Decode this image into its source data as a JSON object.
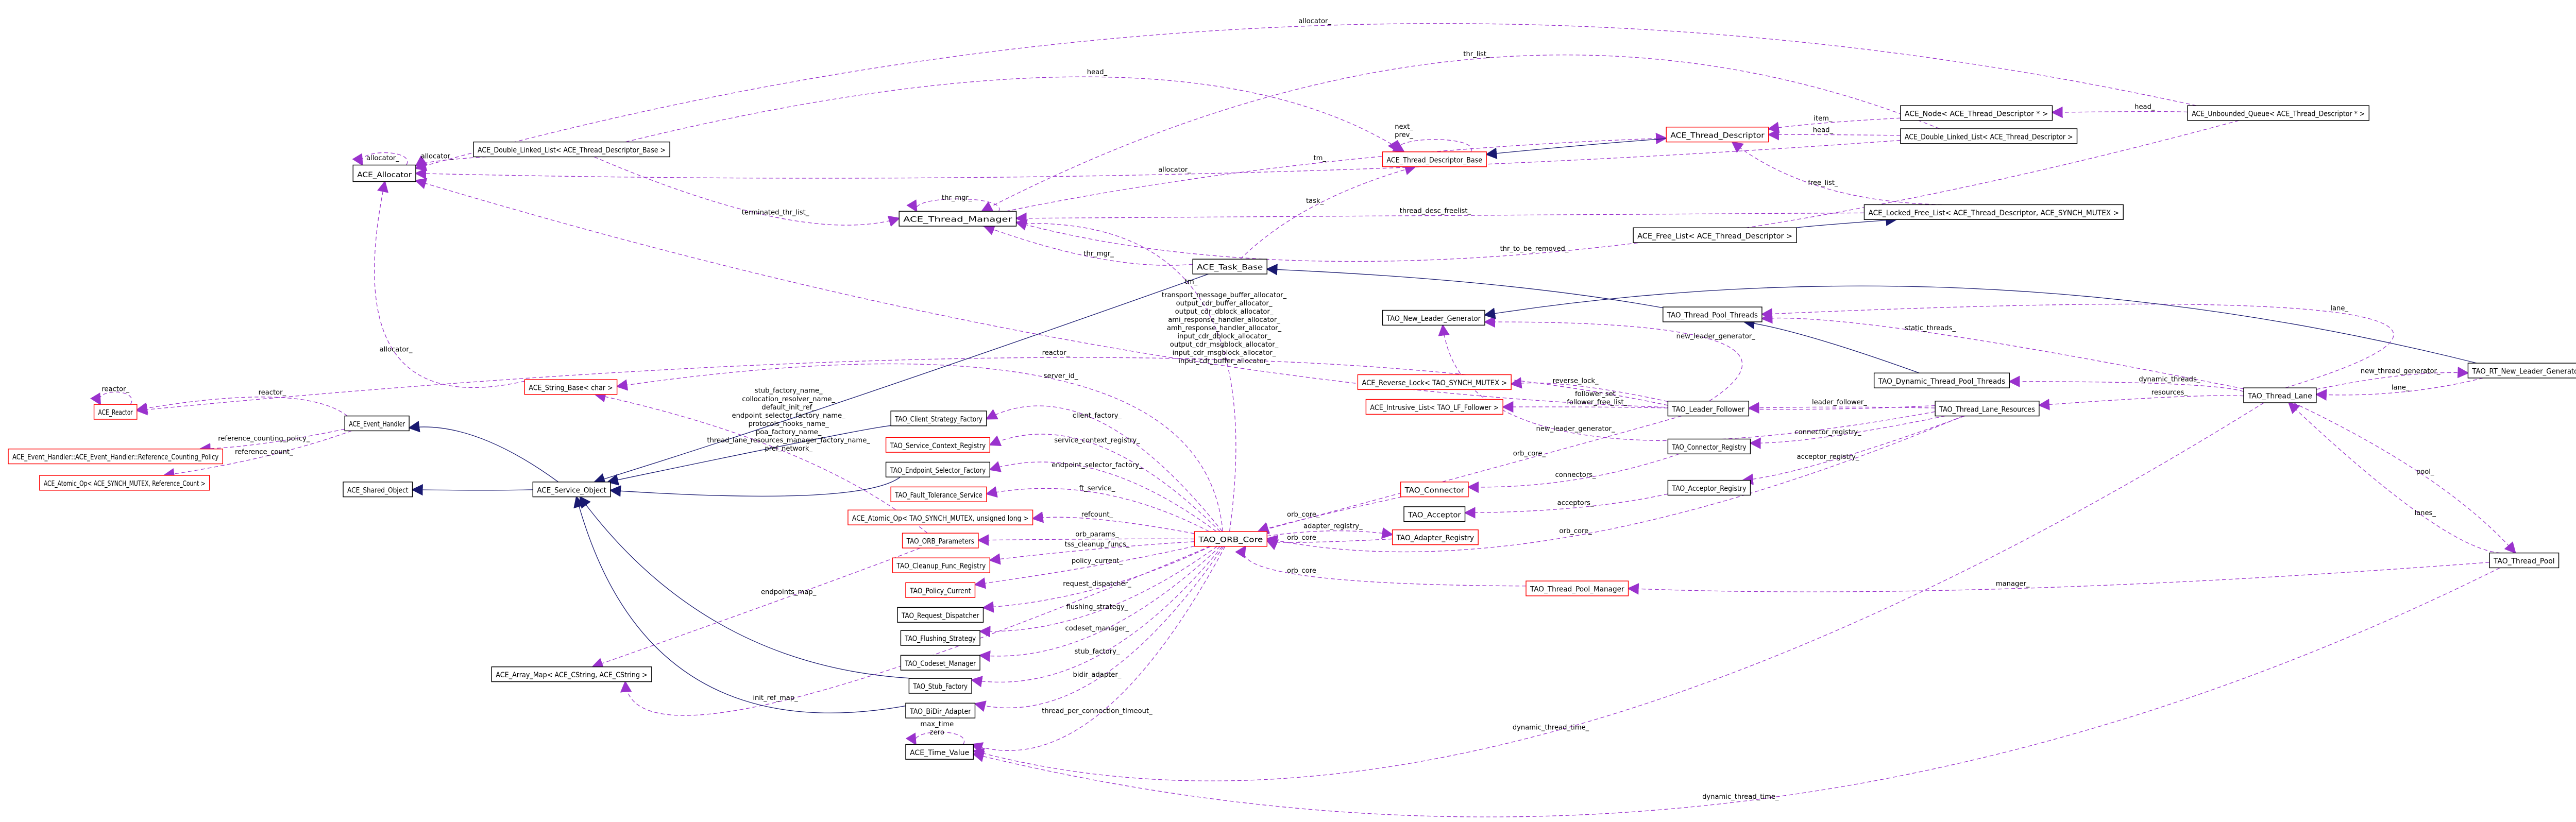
{
  "colors": {
    "usage_edge": "#9a32cd",
    "inheritance_edge": "#191970",
    "undocumented_border": "#ff0000",
    "normal_border": "#000000",
    "highlight_fill": "#bfbfbf"
  },
  "nodes": [
    {
      "id": "alloc",
      "label": "ACE_Allocator",
      "border": "normal"
    },
    {
      "id": "dll_base",
      "label": "ACE_Double_Linked_List< ACE_Thread_Descriptor_Base >",
      "border": "normal"
    },
    {
      "id": "tm",
      "label": "ACE_Thread_Manager",
      "border": "normal"
    },
    {
      "id": "tdb",
      "label": "ACE_Thread_Descriptor_Base",
      "border": "red"
    },
    {
      "id": "td",
      "label": "ACE_Thread_Descriptor",
      "border": "red"
    },
    {
      "id": "node",
      "label": "ACE_Node< ACE_Thread_Descriptor * >",
      "border": "normal"
    },
    {
      "id": "dll_td",
      "label": "ACE_Double_Linked_List< ACE_Thread_Descriptor >",
      "border": "normal"
    },
    {
      "id": "uq",
      "label": "ACE_Unbounded_Queue< ACE_Thread_Descriptor * >",
      "border": "normal"
    },
    {
      "id": "lfl",
      "label": "ACE_Locked_Free_List< ACE_Thread_Descriptor, ACE_SYNCH_MUTEX >",
      "border": "normal"
    },
    {
      "id": "fl",
      "label": "ACE_Free_List< ACE_Thread_Descriptor >",
      "border": "normal"
    },
    {
      "id": "task",
      "label": "ACE_Task_Base",
      "border": "normal"
    },
    {
      "id": "tpt",
      "label": "TAO_Thread_Pool_Threads",
      "border": "highlight"
    },
    {
      "id": "nlg",
      "label": "TAO_New_Leader_Generator",
      "border": "normal"
    },
    {
      "id": "dtpt",
      "label": "TAO_Dynamic_Thread_Pool_Threads",
      "border": "normal"
    },
    {
      "id": "lane",
      "label": "TAO_Thread_Lane",
      "border": "normal"
    },
    {
      "id": "rtnlg",
      "label": "TAO_RT_New_Leader_Generator",
      "border": "normal"
    },
    {
      "id": "tlr",
      "label": "TAO_Thread_Lane_Resources",
      "border": "normal"
    },
    {
      "id": "lf",
      "label": "TAO_Leader_Follower",
      "border": "normal"
    },
    {
      "id": "rlock",
      "label": "ACE_Reverse_Lock< TAO_SYNCH_MUTEX >",
      "border": "red"
    },
    {
      "id": "ilist",
      "label": "ACE_Intrusive_List< TAO_LF_Follower >",
      "border": "red"
    },
    {
      "id": "creg",
      "label": "TAO_Connector_Registry",
      "border": "normal"
    },
    {
      "id": "conn",
      "label": "TAO_Connector",
      "border": "red"
    },
    {
      "id": "areg",
      "label": "TAO_Acceptor_Registry",
      "border": "normal"
    },
    {
      "id": "acc",
      "label": "TAO_Acceptor",
      "border": "normal"
    },
    {
      "id": "adreg",
      "label": "TAO_Adapter_Registry",
      "border": "red"
    },
    {
      "id": "orb",
      "label": "TAO_ORB_Core",
      "border": "red"
    },
    {
      "id": "tpm",
      "label": "TAO_Thread_Pool_Manager",
      "border": "red"
    },
    {
      "id": "pool",
      "label": "TAO_Thread_Pool",
      "border": "normal"
    },
    {
      "id": "strbase",
      "label": "ACE_String_Base< char >",
      "border": "red"
    },
    {
      "id": "reactor",
      "label": "ACE_Reactor",
      "border": "red"
    },
    {
      "id": "eh",
      "label": "ACE_Event_Handler",
      "border": "normal"
    },
    {
      "id": "rcp",
      "label": "ACE_Event_Handler::ACE_Event_Handler::Reference_Counting_Policy",
      "border": "red"
    },
    {
      "id": "aorc",
      "label": "ACE_Atomic_Op< ACE_SYNCH_MUTEX, Reference_Count >",
      "border": "red"
    },
    {
      "id": "so",
      "label": "ACE_Shared_Object",
      "border": "normal"
    },
    {
      "id": "svc",
      "label": "ACE_Service_Object",
      "border": "normal"
    },
    {
      "id": "csf",
      "label": "TAO_Client_Strategy_Factory",
      "border": "normal"
    },
    {
      "id": "scr",
      "label": "TAO_Service_Context_Registry",
      "border": "red"
    },
    {
      "id": "esf",
      "label": "TAO_Endpoint_Selector_Factory",
      "border": "normal"
    },
    {
      "id": "fts",
      "label": "TAO_Fault_Tolerance_Service",
      "border": "red"
    },
    {
      "id": "aoul",
      "label": "ACE_Atomic_Op< TAO_SYNCH_MUTEX, unsigned long >",
      "border": "red"
    },
    {
      "id": "params",
      "label": "TAO_ORB_Parameters",
      "border": "red"
    },
    {
      "id": "cfr",
      "label": "TAO_Cleanup_Func_Registry",
      "border": "red"
    },
    {
      "id": "pc",
      "label": "TAO_Policy_Current",
      "border": "red"
    },
    {
      "id": "rd",
      "label": "TAO_Request_Dispatcher",
      "border": "normal"
    },
    {
      "id": "fs",
      "label": "TAO_Flushing_Strategy",
      "border": "normal"
    },
    {
      "id": "cm",
      "label": "TAO_Codeset_Manager",
      "border": "normal"
    },
    {
      "id": "sf",
      "label": "TAO_Stub_Factory",
      "border": "normal"
    },
    {
      "id": "bidir",
      "label": "TAO_BiDir_Adapter",
      "border": "normal"
    },
    {
      "id": "amap",
      "label": "ACE_Array_Map< ACE_CString, ACE_CString >",
      "border": "normal"
    },
    {
      "id": "tv",
      "label": "ACE_Time_Value",
      "border": "normal"
    }
  ],
  "edges": [
    {
      "from": "alloc",
      "to": "alloc",
      "kind": "usage",
      "label": [
        "allocator_"
      ]
    },
    {
      "from": "dll_base",
      "to": "alloc",
      "kind": "usage",
      "label": [
        "allocator_"
      ]
    },
    {
      "from": "dll_td",
      "to": "alloc",
      "kind": "usage",
      "label": [
        "allocator_"
      ]
    },
    {
      "from": "uq",
      "to": "alloc",
      "kind": "usage",
      "label": [
        "allocator_"
      ]
    },
    {
      "from": "strbase",
      "to": "alloc",
      "kind": "usage",
      "label": [
        "allocator_"
      ]
    },
    {
      "from": "dll_base",
      "to": "tdb",
      "kind": "usage",
      "label": [
        "head_"
      ]
    },
    {
      "from": "dll_base",
      "to": "tm",
      "kind": "usage",
      "label": [
        "terminated_thr_list_"
      ]
    },
    {
      "from": "tm",
      "to": "tm",
      "kind": "usage",
      "label": [
        "thr_mgr_"
      ]
    },
    {
      "from": "dll_td",
      "to": "tm",
      "kind": "usage",
      "label": [
        "thr_list_"
      ]
    },
    {
      "from": "tdb",
      "to": "tdb",
      "kind": "usage",
      "label": [
        "next_",
        "prev_"
      ]
    },
    {
      "from": "tm",
      "to": "td",
      "kind": "usage",
      "label": [
        "tm_"
      ]
    },
    {
      "from": "node",
      "to": "td",
      "kind": "usage",
      "label": [
        "item_"
      ]
    },
    {
      "from": "dll_td",
      "to": "td",
      "kind": "usage",
      "label": [
        "head_"
      ]
    },
    {
      "from": "uq",
      "to": "node",
      "kind": "usage",
      "label": [
        "head_"
      ]
    },
    {
      "from": "lfl",
      "to": "td",
      "kind": "usage",
      "label": [
        "free_list_"
      ]
    },
    {
      "from": "lfl",
      "to": "tm",
      "kind": "usage",
      "label": [
        "thread_desc_freelist_"
      ]
    },
    {
      "from": "uq",
      "to": "tm",
      "kind": "usage",
      "label": [
        "thr_to_be_removed_"
      ]
    },
    {
      "from": "task",
      "to": "tm",
      "kind": "usage",
      "label": [
        "thr_mgr_"
      ]
    },
    {
      "from": "task",
      "to": "tdb",
      "kind": "usage",
      "label": [
        "task_"
      ]
    },
    {
      "from": "orb",
      "to": "tm",
      "kind": "usage",
      "label": [
        "tm_"
      ]
    },
    {
      "from": "lane",
      "to": "tpt",
      "kind": "usage",
      "label": [
        "static_threads_"
      ]
    },
    {
      "from": "lane",
      "to": "tpt",
      "kind": "usage",
      "label": [
        "lane_"
      ]
    },
    {
      "from": "lane",
      "to": "dtpt",
      "kind": "usage",
      "label": [
        "dynamic_threads_"
      ]
    },
    {
      "from": "lane",
      "to": "tlr",
      "kind": "usage",
      "label": [
        "resources_"
      ]
    },
    {
      "from": "lane",
      "to": "rtnlg",
      "kind": "usage",
      "label": [
        "new_thread_generator_"
      ]
    },
    {
      "from": "rtnlg",
      "to": "lane",
      "kind": "usage",
      "label": [
        "lane_"
      ]
    },
    {
      "from": "lane",
      "to": "pool",
      "kind": "usage",
      "label": [
        "pool_"
      ]
    },
    {
      "from": "pool",
      "to": "lane",
      "kind": "usage",
      "label": [
        "lanes_"
      ]
    },
    {
      "from": "lf",
      "to": "nlg",
      "kind": "usage",
      "label": [
        "new_leader_generator_"
      ]
    },
    {
      "from": "tlr",
      "to": "nlg",
      "kind": "usage",
      "label": [
        "new_leader_generator_"
      ]
    },
    {
      "from": "lf",
      "to": "rlock",
      "kind": "usage",
      "label": [
        "reverse_lock_"
      ]
    },
    {
      "from": "lf",
      "to": "ilist",
      "kind": "usage",
      "label": [
        "follower_set_",
        "follower_free_list_"
      ]
    },
    {
      "from": "tlr",
      "to": "lf",
      "kind": "usage",
      "label": [
        "leader_follower_"
      ]
    },
    {
      "from": "tlr",
      "to": "creg",
      "kind": "usage",
      "label": [
        "connector_registry_"
      ]
    },
    {
      "from": "tlr",
      "to": "areg",
      "kind": "usage",
      "label": [
        "acceptor_registry_"
      ]
    },
    {
      "from": "creg",
      "to": "conn",
      "kind": "usage",
      "label": [
        "connectors_"
      ]
    },
    {
      "from": "areg",
      "to": "acc",
      "kind": "usage",
      "label": [
        "acceptors_"
      ]
    },
    {
      "from": "lf",
      "to": "orb",
      "kind": "usage",
      "label": [
        "orb_core_"
      ]
    },
    {
      "from": "conn",
      "to": "orb",
      "kind": "usage",
      "label": [
        "orb_core_"
      ]
    },
    {
      "from": "orb",
      "to": "adreg",
      "kind": "usage",
      "label": [
        "adapter_registry_"
      ]
    },
    {
      "from": "adreg",
      "to": "orb",
      "kind": "usage",
      "label": [
        "orb_core_"
      ]
    },
    {
      "from": "tlr",
      "to": "orb",
      "kind": "usage",
      "label": [
        "orb_core_"
      ]
    },
    {
      "from": "tpm",
      "to": "orb",
      "kind": "usage",
      "label": [
        "orb_core_"
      ]
    },
    {
      "from": "pool",
      "to": "tpm",
      "kind": "usage",
      "label": [
        "manager_"
      ]
    },
    {
      "from": "lane",
      "to": "tv",
      "kind": "usage",
      "label": [
        "dynamic_thread_time_"
      ]
    },
    {
      "from": "pool",
      "to": "tv",
      "kind": "usage",
      "label": [
        "dynamic_thread_time_"
      ]
    },
    {
      "from": "tv",
      "to": "tv",
      "kind": "usage",
      "label": [
        "max_time",
        "zero"
      ]
    },
    {
      "from": "orb",
      "to": "tv",
      "kind": "usage",
      "label": [
        "thread_per_connection_timeout_"
      ]
    },
    {
      "from": "orb",
      "to": "amap",
      "kind": "usage",
      "label": [
        "init_ref_map_"
      ]
    },
    {
      "from": "params",
      "to": "amap",
      "kind": "usage",
      "label": [
        "endpoints_map_"
      ]
    },
    {
      "from": "orb",
      "to": "bidir",
      "kind": "usage",
      "label": [
        "bidir_adapter_"
      ]
    },
    {
      "from": "orb",
      "to": "sf",
      "kind": "usage",
      "label": [
        "stub_factory_"
      ]
    },
    {
      "from": "orb",
      "to": "cm",
      "kind": "usage",
      "label": [
        "codeset_manager_"
      ]
    },
    {
      "from": "orb",
      "to": "fs",
      "kind": "usage",
      "label": [
        "flushing_strategy_"
      ]
    },
    {
      "from": "orb",
      "to": "rd",
      "kind": "usage",
      "label": [
        "request_dispatcher_"
      ]
    },
    {
      "from": "orb",
      "to": "pc",
      "kind": "usage",
      "label": [
        "policy_current_"
      ]
    },
    {
      "from": "orb",
      "to": "cfr",
      "kind": "usage",
      "label": [
        "tss_cleanup_funcs_"
      ]
    },
    {
      "from": "orb",
      "to": "params",
      "kind": "usage",
      "label": [
        "orb_params_"
      ]
    },
    {
      "from": "orb",
      "to": "aoul",
      "kind": "usage",
      "label": [
        "refcount_"
      ]
    },
    {
      "from": "orb",
      "to": "fts",
      "kind": "usage",
      "label": [
        "ft_service_"
      ]
    },
    {
      "from": "orb",
      "to": "esf",
      "kind": "usage",
      "label": [
        "endpoint_selector_factory_"
      ]
    },
    {
      "from": "orb",
      "to": "scr",
      "kind": "usage",
      "label": [
        "service_context_registry_"
      ]
    },
    {
      "from": "orb",
      "to": "csf",
      "kind": "usage",
      "label": [
        "client_factory_"
      ]
    },
    {
      "from": "orb",
      "to": "strbase",
      "kind": "usage",
      "label": [
        "server_id_"
      ]
    },
    {
      "from": "reactor",
      "to": "reactor",
      "kind": "usage",
      "label": [
        "reactor_"
      ]
    },
    {
      "from": "eh",
      "to": "reactor",
      "kind": "usage",
      "label": [
        "reactor_"
      ]
    },
    {
      "from": "eh",
      "to": "rcp",
      "kind": "usage",
      "label": [
        "reference_counting_policy_"
      ]
    },
    {
      "from": "eh",
      "to": "aorc",
      "kind": "usage",
      "label": [
        "reference_count_"
      ]
    },
    {
      "from": "lf",
      "to": "reactor",
      "kind": "usage",
      "label": [
        "reactor_"
      ]
    },
    {
      "from": "params",
      "to": "strbase",
      "kind": "usage",
      "label": [
        "stub_factory_name_",
        "collocation_resolver_name_",
        "default_init_ref_",
        "endpoint_selector_factory_name_",
        "protocols_hooks_name_",
        "poa_factory_name_",
        "thread_lane_resources_manager_factory_name_",
        "pref_network_"
      ]
    },
    {
      "from": "tlr",
      "to": "alloc",
      "kind": "usage",
      "label": [
        "transport_message_buffer_allocator_",
        "output_cdr_buffer_allocator_",
        "output_cdr_dblock_allocator_",
        "ami_response_handler_allocator_",
        "amh_response_handler_allocator_",
        "input_cdr_dblock_allocator_",
        "output_cdr_msgblock_allocator_",
        "input_cdr_msgblock_allocator_",
        "input_cdr_buffer_allocator_"
      ]
    },
    {
      "from": "tpt",
      "to": "task",
      "kind": "inheritance",
      "label": []
    },
    {
      "from": "dtpt",
      "to": "tpt",
      "kind": "inheritance",
      "label": []
    },
    {
      "from": "rtnlg",
      "to": "nlg",
      "kind": "inheritance",
      "label": []
    },
    {
      "from": "task",
      "to": "svc",
      "kind": "inheritance",
      "label": []
    },
    {
      "from": "svc",
      "to": "so",
      "kind": "inheritance",
      "label": []
    },
    {
      "from": "svc",
      "to": "eh",
      "kind": "inheritance",
      "label": []
    },
    {
      "from": "csf",
      "to": "svc",
      "kind": "inheritance",
      "label": []
    },
    {
      "from": "esf",
      "to": "svc",
      "kind": "inheritance",
      "label": []
    },
    {
      "from": "sf",
      "to": "svc",
      "kind": "inheritance",
      "label": []
    },
    {
      "from": "bidir",
      "to": "svc",
      "kind": "inheritance",
      "label": []
    },
    {
      "from": "td",
      "to": "tdb",
      "kind": "inheritance",
      "label": []
    },
    {
      "from": "fl",
      "to": "lfl",
      "kind": "inheritance",
      "label": []
    }
  ]
}
